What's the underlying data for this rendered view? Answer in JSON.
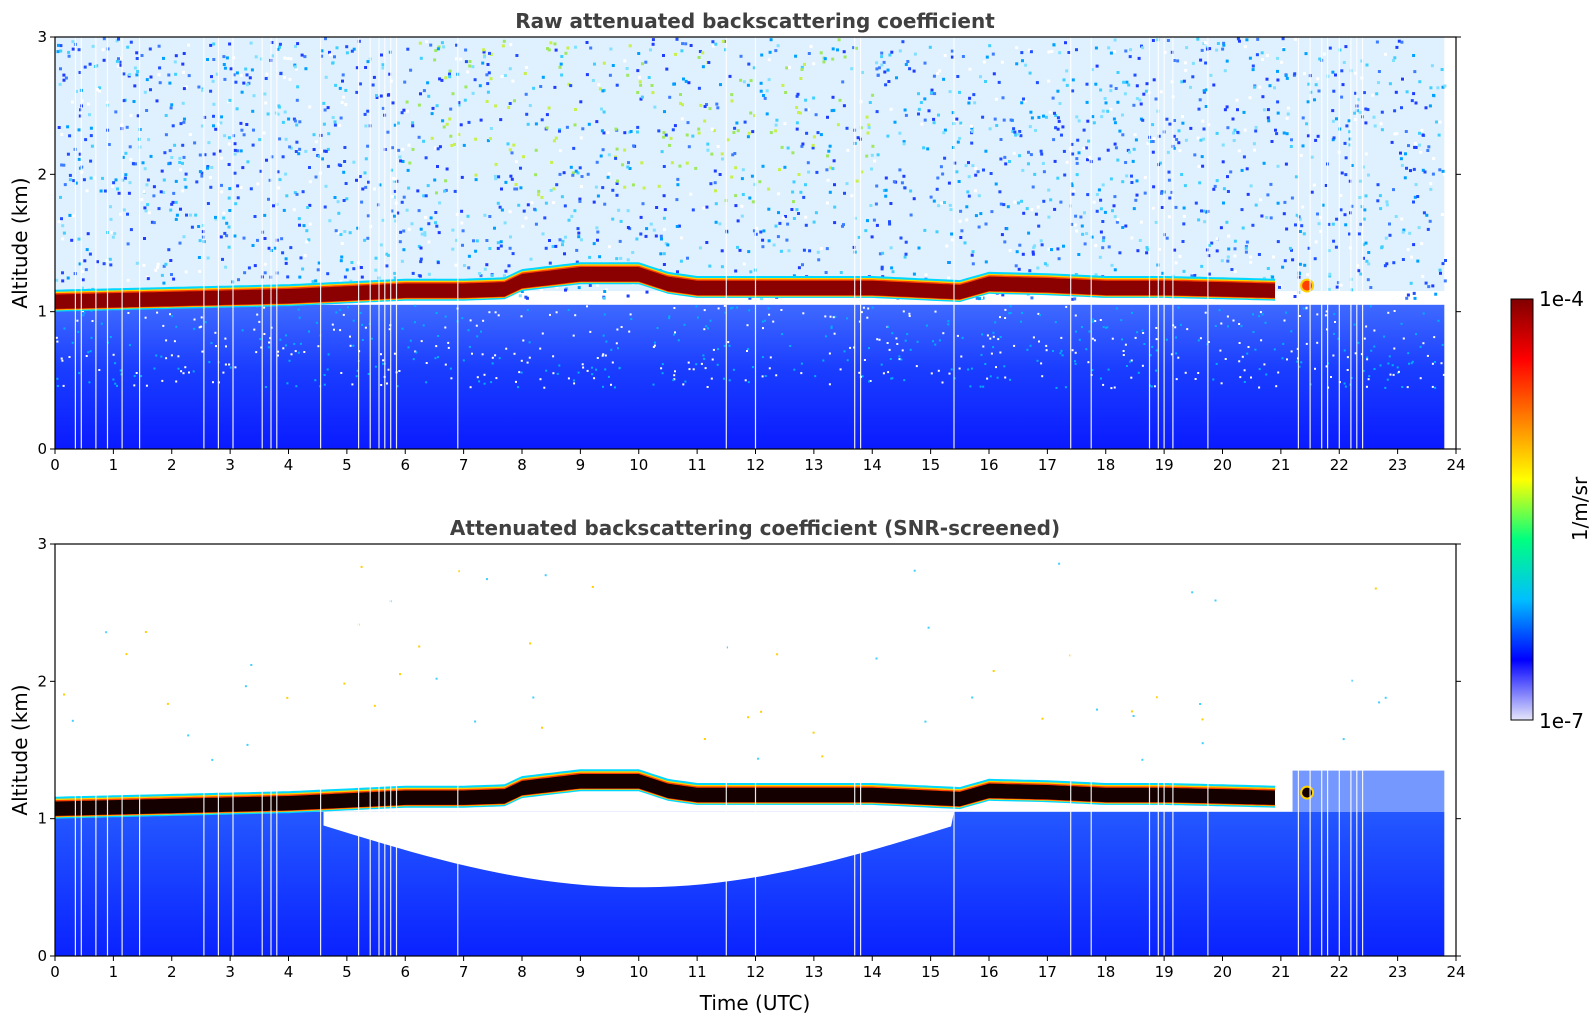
{
  "chart_data": [
    {
      "type": "heatmap",
      "title": "Raw attenuated backscattering coefficient",
      "xlabel": "",
      "ylabel": "Altitude (km)",
      "xlim": [
        0,
        24
      ],
      "ylim": [
        0,
        3
      ],
      "xticks": [
        "0",
        "1",
        "2",
        "3",
        "4",
        "5",
        "6",
        "7",
        "8",
        "9",
        "10",
        "11",
        "12",
        "13",
        "14",
        "15",
        "16",
        "17",
        "18",
        "19",
        "20",
        "21",
        "22",
        "23",
        "24"
      ],
      "yticks": [
        "0",
        "1",
        "2",
        "3"
      ],
      "cloud_base_km": [
        [
          0,
          1.07
        ],
        [
          2,
          1.09
        ],
        [
          4,
          1.11
        ],
        [
          5,
          1.13
        ],
        [
          6,
          1.15
        ],
        [
          7,
          1.15
        ],
        [
          7.7,
          1.16
        ],
        [
          8,
          1.22
        ],
        [
          9,
          1.27
        ],
        [
          10,
          1.27
        ],
        [
          10.5,
          1.2
        ],
        [
          11,
          1.17
        ],
        [
          12,
          1.17
        ],
        [
          13,
          1.17
        ],
        [
          14,
          1.17
        ],
        [
          15,
          1.15
        ],
        [
          15.5,
          1.14
        ],
        [
          16,
          1.2
        ],
        [
          17,
          1.19
        ],
        [
          18,
          1.17
        ],
        [
          19,
          1.17
        ],
        [
          20,
          1.16
        ],
        [
          20.9,
          1.15
        ]
      ],
      "data_end_hour": 23.8
    },
    {
      "type": "heatmap",
      "title": "Attenuated backscattering coefficient (SNR-screened)",
      "xlabel": "Time (UTC)",
      "ylabel": "Altitude (km)",
      "xlim": [
        0,
        24
      ],
      "ylim": [
        0,
        3
      ],
      "xticks": [
        "0",
        "1",
        "2",
        "3",
        "4",
        "5",
        "6",
        "7",
        "8",
        "9",
        "10",
        "11",
        "12",
        "13",
        "14",
        "15",
        "16",
        "17",
        "18",
        "19",
        "20",
        "21",
        "22",
        "23",
        "24"
      ],
      "yticks": [
        "0",
        "1",
        "2",
        "3"
      ],
      "cloud_base_km": [
        [
          0,
          1.07
        ],
        [
          2,
          1.09
        ],
        [
          4,
          1.11
        ],
        [
          5,
          1.13
        ],
        [
          6,
          1.15
        ],
        [
          7,
          1.15
        ],
        [
          7.7,
          1.16
        ],
        [
          8,
          1.22
        ],
        [
          9,
          1.27
        ],
        [
          10,
          1.27
        ],
        [
          10.5,
          1.2
        ],
        [
          11,
          1.17
        ],
        [
          12,
          1.17
        ],
        [
          13,
          1.17
        ],
        [
          14,
          1.17
        ],
        [
          15,
          1.15
        ],
        [
          15.5,
          1.14
        ],
        [
          16,
          1.2
        ],
        [
          17,
          1.19
        ],
        [
          18,
          1.17
        ],
        [
          19,
          1.17
        ],
        [
          20,
          1.16
        ],
        [
          20.9,
          1.15
        ]
      ],
      "screened_gap_hours": [
        4.6,
        15.4
      ],
      "data_end_hour": 23.8
    }
  ],
  "colorbar": {
    "label": "1/m/sr",
    "max_label": "1e-4",
    "min_label": "1e-7",
    "colors": [
      "#e6e6fa",
      "#0000ff",
      "#00bfff",
      "#00ff80",
      "#ffff00",
      "#ff8000",
      "#ff0000",
      "#800000"
    ]
  }
}
